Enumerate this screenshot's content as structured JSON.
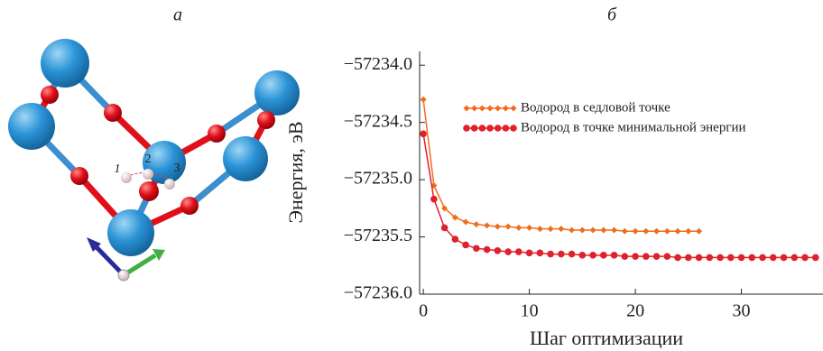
{
  "panel_labels": [
    "а",
    "б"
  ],
  "structure_labels": [
    "1",
    "2",
    "3"
  ],
  "chart_data": {
    "type": "line",
    "x_label": "Шаг оптимизации",
    "y_label": "Энергия, эВ",
    "x": [
      0,
      1,
      2,
      3,
      4,
      5,
      6,
      7,
      8,
      9,
      10,
      11,
      12,
      13,
      14,
      15,
      16,
      17,
      18,
      19,
      20,
      21,
      22,
      23,
      24,
      25,
      26,
      27,
      28,
      29,
      30,
      31,
      32,
      33,
      34,
      35,
      36,
      37
    ],
    "xlim": [
      -0.35,
      37.7
    ],
    "xticks": [
      0,
      10,
      20,
      30
    ],
    "ylim": [
      -57236.0,
      -57233.88
    ],
    "yticks": [
      {
        "value": -57234.0,
        "label": "−57234.0"
      },
      {
        "value": -57234.5,
        "label": "−57234.5"
      },
      {
        "value": -57235.0,
        "label": "−57235.0"
      },
      {
        "value": -57235.5,
        "label": "−57235.5"
      },
      {
        "value": -57236.0,
        "label": "−57236.0"
      }
    ],
    "legend_position": "upper right",
    "series": [
      {
        "name": "Водород в седловой точке",
        "color": "#f26c1d",
        "marker": "diamond",
        "values": [
          -57234.3,
          -57235.05,
          -57235.25,
          -57235.33,
          -57235.37,
          -57235.39,
          -57235.4,
          -57235.41,
          -57235.41,
          -57235.42,
          -57235.42,
          -57235.43,
          -57235.43,
          -57235.43,
          -57235.44,
          -57235.44,
          -57235.44,
          -57235.44,
          -57235.44,
          -57235.45,
          -57235.45,
          -57235.45,
          -57235.45,
          -57235.45,
          -57235.45,
          -57235.45,
          -57235.45,
          null,
          null,
          null,
          null,
          null,
          null,
          null,
          null,
          null,
          null,
          null
        ]
      },
      {
        "name": "Водород в точке минимальной энергии",
        "color": "#e0202a",
        "marker": "circle",
        "values": [
          -57234.6,
          -57235.17,
          -57235.42,
          -57235.52,
          -57235.57,
          -57235.6,
          -57235.61,
          -57235.62,
          -57235.63,
          -57235.63,
          -57235.64,
          -57235.64,
          -57235.65,
          -57235.65,
          -57235.65,
          -57235.66,
          -57235.66,
          -57235.66,
          -57235.66,
          -57235.67,
          -57235.67,
          -57235.67,
          -57235.67,
          -57235.67,
          -57235.68,
          -57235.68,
          -57235.68,
          -57235.68,
          -57235.68,
          -57235.68,
          -57235.68,
          -57235.68,
          -57235.68,
          -57235.68,
          -57235.68,
          -57235.68,
          -57235.68,
          -57235.68
        ]
      }
    ]
  }
}
